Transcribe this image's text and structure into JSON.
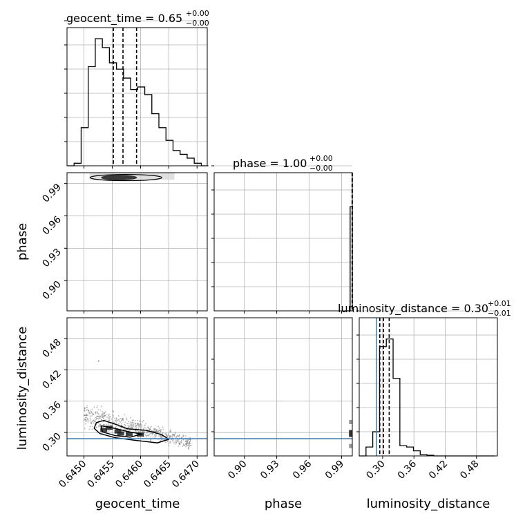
{
  "chart_data": {
    "type": "corner",
    "params": [
      "geocent_time",
      "phase",
      "luminosity_distance"
    ],
    "truth": {
      "luminosity_distance": 0.288
    },
    "truth_color": "#4682b4",
    "grid": true,
    "panels": [
      {
        "id": "hist-geocent_time",
        "type": "histogram",
        "param": "geocent_time",
        "title": {
          "main": "geocent_time = 0.65",
          "sup": "+0.00",
          "sub": "−0.00"
        },
        "xlim": [
          0.6447,
          0.64718
        ],
        "bin_edges": [
          0.6447,
          0.644825,
          0.64495,
          0.645075,
          0.6452,
          0.645325,
          0.64545,
          0.645575,
          0.6457,
          0.645825,
          0.64595,
          0.646075,
          0.6462,
          0.646325,
          0.64645,
          0.646575,
          0.6467,
          0.646825,
          0.64695,
          0.647075,
          0.6472
        ],
        "counts": [
          0.0,
          0.02,
          0.3,
          0.78,
          1.0,
          0.93,
          0.81,
          0.76,
          0.69,
          0.6,
          0.62,
          0.56,
          0.41,
          0.3,
          0.2,
          0.12,
          0.09,
          0.06,
          0.02,
          0.0
        ],
        "quantiles": [
          0.64552,
          0.64569,
          0.64593
        ]
      },
      {
        "id": "hist-phase",
        "type": "histogram",
        "param": "phase",
        "title": {
          "main": "phase = 1.00",
          "sup": "+0.00",
          "sub": "−0.00"
        },
        "xlim": [
          0.872,
          1.0
        ],
        "bin_edges": [
          0.9955,
          0.998,
          1.0
        ],
        "counts": [
          0.0,
          0.82
        ],
        "quantiles": [
          0.9998,
          0.9999,
          1.0
        ]
      },
      {
        "id": "hist-luminosity_distance",
        "type": "histogram",
        "param": "luminosity_distance",
        "title": {
          "main": "luminosity_distance = 0.30",
          "sup": "+0.01",
          "sub": "−0.01"
        },
        "xlim": [
          0.255,
          0.52
        ],
        "bin_edges": [
          0.255,
          0.268,
          0.281,
          0.294,
          0.307,
          0.32,
          0.333,
          0.346,
          0.359,
          0.372,
          0.385,
          0.398,
          0.411,
          0.424,
          0.437,
          0.45,
          0.463,
          0.476,
          0.489,
          0.502,
          0.515
        ],
        "counts": [
          0.0,
          0.07,
          0.19,
          0.86,
          0.92,
          0.61,
          0.08,
          0.07,
          0.04,
          0.01,
          0.005,
          0.0,
          0.0,
          0.0,
          0.0,
          0.0,
          0.0,
          0.0,
          0.0,
          0.0
        ],
        "quantiles": [
          0.2945,
          0.3015,
          0.3125
        ]
      },
      {
        "id": "2d-geocent_time-phase",
        "type": "hist2d",
        "x": "geocent_time",
        "y": "phase",
        "xlim": [
          0.6447,
          0.64718
        ],
        "ylim": [
          0.872,
          1.0
        ],
        "density_band": {
          "x_range": [
            0.6451,
            0.6466
          ],
          "y_range": [
            0.9935,
            1.0
          ],
          "peak_x": 0.64562
        }
      },
      {
        "id": "2d-geocent_time-luminosity_distance",
        "type": "hist2d",
        "x": "geocent_time",
        "y": "luminosity_distance",
        "xlim": [
          0.6447,
          0.64718
        ],
        "ylim": [
          0.255,
          0.52
        ],
        "contours": [
          [
            [
              0.64522,
              0.319
            ],
            [
              0.64535,
              0.323
            ],
            [
              0.64555,
              0.316
            ],
            [
              0.64577,
              0.307
            ],
            [
              0.6461,
              0.304
            ],
            [
              0.64637,
              0.296
            ],
            [
              0.6465,
              0.287
            ],
            [
              0.6463,
              0.28
            ],
            [
              0.6459,
              0.285
            ],
            [
              0.64555,
              0.29
            ],
            [
              0.64528,
              0.298
            ],
            [
              0.64518,
              0.308
            ]
          ],
          [
            [
              0.6453,
              0.313
            ],
            [
              0.6455,
              0.309
            ],
            [
              0.6458,
              0.301
            ],
            [
              0.64602,
              0.297
            ],
            [
              0.64582,
              0.291
            ],
            [
              0.64555,
              0.294
            ],
            [
              0.64533,
              0.301
            ]
          ]
        ],
        "dense_points": [
          [
            0.64545,
            0.309
          ],
          [
            0.64565,
            0.298
          ],
          [
            0.6458,
            0.297
          ],
          [
            0.646,
            0.296
          ],
          [
            0.64535,
            0.305
          ],
          [
            0.6456,
            0.302
          ]
        ],
        "scatter_extent": {
          "x": [
            0.645,
            0.6469
          ],
          "y": [
            0.272,
            0.362
          ]
        },
        "outlier": [
          0.64526,
          0.437
        ]
      },
      {
        "id": "2d-phase-luminosity_distance",
        "type": "hist2d",
        "x": "phase",
        "y": "luminosity_distance",
        "xlim": [
          0.872,
          1.0
        ],
        "ylim": [
          0.255,
          0.52
        ],
        "edge_blobs": [
          [
            0.9995,
            0.298
          ],
          [
            0.9995,
            0.32
          ],
          [
            0.9995,
            0.274
          ]
        ]
      }
    ],
    "axes": {
      "geocent_time": {
        "label": "geocent_time",
        "ticks": [
          0.645,
          0.6455,
          0.646,
          0.6465,
          0.647
        ],
        "tick_labels": [
          "0.6450",
          "0.6455",
          "0.6460",
          "0.6465",
          "0.6470"
        ]
      },
      "phase": {
        "label": "phase",
        "ticks": [
          0.9,
          0.93,
          0.96,
          0.99
        ],
        "tick_labels": [
          "0.90",
          "0.93",
          "0.96",
          "0.99"
        ]
      },
      "luminosity_distance": {
        "label": "luminosity_distance",
        "ticks": [
          0.3,
          0.36,
          0.42,
          0.48
        ],
        "tick_labels": [
          "0.30",
          "0.36",
          "0.42",
          "0.48"
        ]
      }
    },
    "hist_yticks": 6
  }
}
